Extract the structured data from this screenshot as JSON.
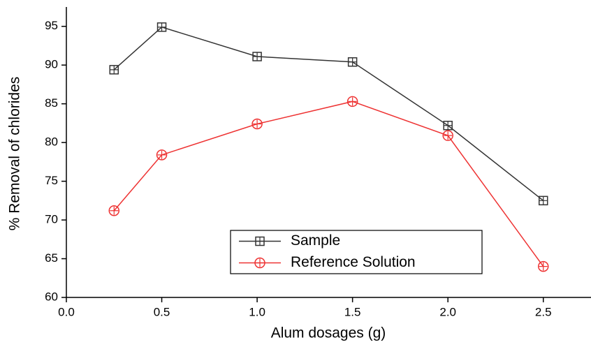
{
  "chart_data": {
    "type": "line",
    "x_label": "Alum dosages (g)",
    "y_label": "% Removal of chlorides",
    "x": [
      0.25,
      0.5,
      1.0,
      1.5,
      2.0,
      2.5
    ],
    "series": [
      {
        "name": "Sample",
        "color": "#333333",
        "marker": "square",
        "values": [
          89.4,
          94.9,
          91.1,
          90.4,
          82.2,
          72.5
        ]
      },
      {
        "name": "Reference Solution",
        "color": "#ee3333",
        "marker": "circle",
        "values": [
          71.2,
          78.4,
          82.4,
          85.3,
          80.9,
          64.0
        ]
      }
    ],
    "xlim": [
      0,
      2.75
    ],
    "ylim": [
      60,
      97.5
    ],
    "xticks": [
      {
        "value": 0,
        "label": "0.0"
      },
      0.5,
      {
        "value": 1,
        "label": "1.0"
      },
      1.5,
      {
        "value": 2,
        "label": "2.0"
      },
      2.5
    ],
    "yticks": [
      60,
      65,
      70,
      75,
      80,
      85,
      90,
      95
    ]
  }
}
